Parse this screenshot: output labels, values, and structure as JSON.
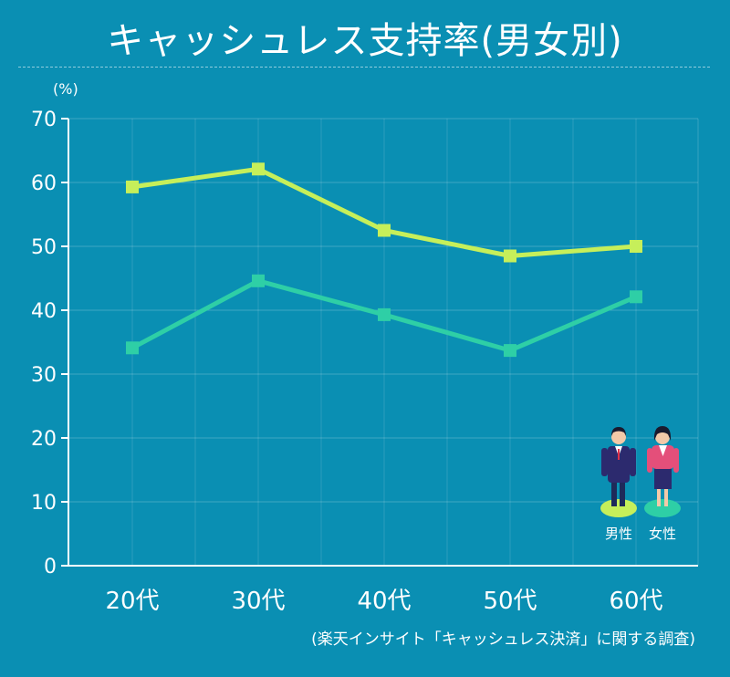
{
  "title": "キャッシュレス支持率(男女別)",
  "unit": "(%)",
  "source": "(楽天インサイト「キャッシュレス決済」に関する調査)",
  "colors": {
    "background": "#0a8fb3",
    "male": "#c6ef5a",
    "female": "#2ecfa6"
  },
  "legend": {
    "items": [
      {
        "label": "男性",
        "icon": "man-figure-icon"
      },
      {
        "label": "女性",
        "icon": "woman-figure-icon"
      }
    ]
  },
  "chart_data": {
    "type": "line",
    "title": "キャッシュレス支持率(男女別)",
    "xlabel": "",
    "ylabel": "(%)",
    "categories": [
      "20代",
      "30代",
      "40代",
      "50代",
      "60代"
    ],
    "ylim": [
      0,
      70
    ],
    "yticks": [
      0,
      10,
      20,
      30,
      40,
      50,
      60,
      70
    ],
    "grid": true,
    "legend_position": "bottom-right",
    "series": [
      {
        "name": "男性",
        "values": [
          59.3,
          62.1,
          52.5,
          48.5,
          50.0
        ]
      },
      {
        "name": "女性",
        "values": [
          34.1,
          44.6,
          39.3,
          33.7,
          42.1
        ]
      }
    ]
  }
}
